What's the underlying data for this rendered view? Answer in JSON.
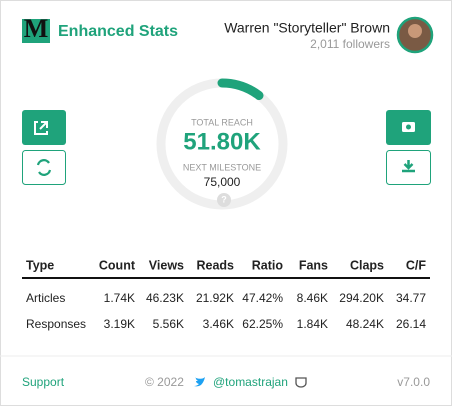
{
  "header": {
    "title": "Enhanced Stats",
    "user": {
      "name": "Warren \"Storyteller\" Brown",
      "followers": "2,011 followers"
    }
  },
  "reach": {
    "label": "TOTAL REACH",
    "value": "51.80K",
    "milestone_label": "NEXT MILESTONE",
    "milestone_value": "75,000"
  },
  "table": {
    "columns": [
      "Type",
      "Count",
      "Views",
      "Reads",
      "Ratio",
      "Fans",
      "Claps",
      "C/F"
    ],
    "rows": [
      [
        "Articles",
        "1.74K",
        "46.23K",
        "21.92K",
        "47.42%",
        "8.46K",
        "294.20K",
        "34.77"
      ],
      [
        "Responses",
        "3.19K",
        "5.56K",
        "3.46K",
        "62.25%",
        "1.84K",
        "48.24K",
        "26.14"
      ]
    ]
  },
  "footer": {
    "support": "Support",
    "copyright": "© 2022",
    "handle": "@tomastrajan",
    "version": "v7.0.0"
  }
}
